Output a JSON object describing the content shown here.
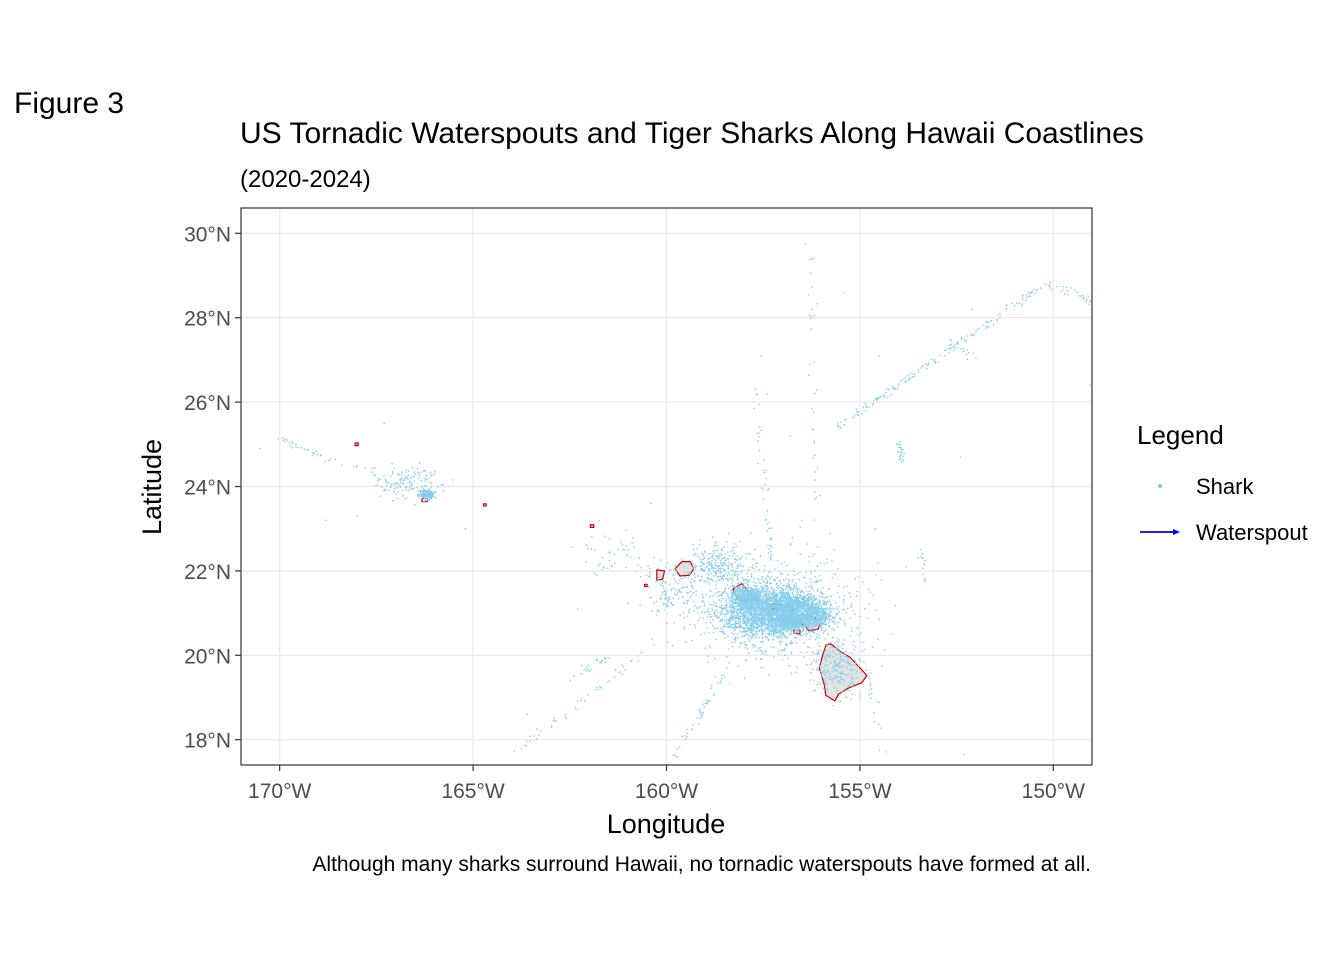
{
  "figure_label": "Figure 3",
  "chart_data": {
    "type": "map",
    "title": "US Tornadic Waterspouts and Tiger Sharks Along Hawaii Coastlines",
    "subtitle": "(2020-2024)",
    "xlabel": "Longitude",
    "ylabel": "Latitude",
    "caption": "Although many sharks surround Hawaii, no tornadic waterspouts have formed at all.",
    "xlim": [
      -171.0,
      -149.0
    ],
    "ylim": [
      17.4,
      30.6
    ],
    "x_ticks": [
      -170,
      -165,
      -160,
      -155,
      -150
    ],
    "x_tick_labels": [
      "170°W",
      "165°W",
      "160°W",
      "155°W",
      "150°W"
    ],
    "y_ticks": [
      18,
      20,
      22,
      24,
      26,
      28,
      30
    ],
    "y_tick_labels": [
      "18°N",
      "20°N",
      "22°N",
      "24°N",
      "26°N",
      "28°N",
      "30°N"
    ],
    "grid": true,
    "legend": {
      "title": "Legend",
      "placement": "right",
      "entries": [
        {
          "label": "Shark",
          "type": "point",
          "color": "#87CEEB"
        },
        {
          "label": "Waterspout",
          "type": "arrow",
          "color": "#0000FF"
        }
      ]
    },
    "waterspouts": [],
    "colors": {
      "shark": "#87CEEB",
      "waterspout": "#0000FF",
      "coastline": "#CC0000",
      "land": "#E3E3E3",
      "grid": "#EBEBEB"
    },
    "islands": [
      {
        "name": "Hawaii",
        "outline": [
          [
            -155.87,
            20.25
          ],
          [
            -155.75,
            20.27
          ],
          [
            -155.55,
            20.12
          ],
          [
            -155.25,
            19.95
          ],
          [
            -155.05,
            19.75
          ],
          [
            -154.82,
            19.52
          ],
          [
            -154.95,
            19.35
          ],
          [
            -155.3,
            19.22
          ],
          [
            -155.55,
            19.08
          ],
          [
            -155.65,
            18.92
          ],
          [
            -155.88,
            19.05
          ],
          [
            -155.92,
            19.3
          ],
          [
            -156.05,
            19.7
          ],
          [
            -155.95,
            20.05
          ]
        ]
      },
      {
        "name": "Maui",
        "outline": [
          [
            -156.68,
            20.92
          ],
          [
            -156.47,
            20.98
          ],
          [
            -156.28,
            20.95
          ],
          [
            -156.0,
            20.8
          ],
          [
            -156.08,
            20.62
          ],
          [
            -156.32,
            20.58
          ],
          [
            -156.45,
            20.73
          ],
          [
            -156.62,
            20.78
          ]
        ]
      },
      {
        "name": "Kahoolawe",
        "outline": [
          [
            -156.72,
            20.6
          ],
          [
            -156.55,
            20.6
          ],
          [
            -156.55,
            20.5
          ],
          [
            -156.7,
            20.52
          ]
        ]
      },
      {
        "name": "Lanai",
        "outline": [
          [
            -157.05,
            20.9
          ],
          [
            -156.82,
            20.9
          ],
          [
            -156.82,
            20.74
          ],
          [
            -157.05,
            20.75
          ]
        ]
      },
      {
        "name": "Molokai",
        "outline": [
          [
            -157.3,
            21.22
          ],
          [
            -156.95,
            21.2
          ],
          [
            -156.72,
            21.15
          ],
          [
            -156.75,
            21.06
          ],
          [
            -157.05,
            21.08
          ],
          [
            -157.3,
            21.1
          ]
        ]
      },
      {
        "name": "Oahu",
        "outline": [
          [
            -158.28,
            21.58
          ],
          [
            -158.05,
            21.7
          ],
          [
            -157.82,
            21.45
          ],
          [
            -157.65,
            21.3
          ],
          [
            -157.9,
            21.28
          ],
          [
            -158.12,
            21.3
          ],
          [
            -158.25,
            21.45
          ]
        ]
      },
      {
        "name": "Kauai",
        "outline": [
          [
            -159.78,
            22.05
          ],
          [
            -159.6,
            22.22
          ],
          [
            -159.38,
            22.22
          ],
          [
            -159.3,
            22.05
          ],
          [
            -159.4,
            21.9
          ],
          [
            -159.65,
            21.88
          ]
        ]
      },
      {
        "name": "Niihau",
        "outline": [
          [
            -160.25,
            22.02
          ],
          [
            -160.05,
            22.0
          ],
          [
            -160.1,
            21.8
          ],
          [
            -160.25,
            21.78
          ]
        ]
      },
      {
        "name": "Kaula",
        "outline": [
          [
            -160.57,
            21.68
          ],
          [
            -160.5,
            21.68
          ],
          [
            -160.5,
            21.63
          ],
          [
            -160.57,
            21.63
          ]
        ]
      },
      {
        "name": "Nihoa",
        "outline": [
          [
            -161.97,
            23.09
          ],
          [
            -161.88,
            23.09
          ],
          [
            -161.88,
            23.03
          ],
          [
            -161.97,
            23.03
          ]
        ]
      },
      {
        "name": "Necker",
        "outline": [
          [
            -164.73,
            23.59
          ],
          [
            -164.66,
            23.59
          ],
          [
            -164.66,
            23.54
          ],
          [
            -164.73,
            23.54
          ]
        ]
      },
      {
        "name": "French Frigate Shoals",
        "outline": [
          [
            -166.32,
            23.72
          ],
          [
            -166.18,
            23.72
          ],
          [
            -166.18,
            23.64
          ],
          [
            -166.32,
            23.64
          ]
        ]
      },
      {
        "name": "Gardner Pinnacles",
        "outline": [
          [
            -168.05,
            25.03
          ],
          [
            -167.97,
            25.03
          ],
          [
            -167.97,
            24.97
          ],
          [
            -168.05,
            24.97
          ]
        ]
      }
    ],
    "shark_clusters": [
      {
        "cx": -157.3,
        "cy": 21.0,
        "sx": 1.3,
        "sy": 0.55,
        "n": 2400
      },
      {
        "cx": -157.9,
        "cy": 21.4,
        "sx": 0.4,
        "sy": 0.25,
        "n": 500
      },
      {
        "cx": -156.2,
        "cy": 20.9,
        "sx": 0.45,
        "sy": 0.25,
        "n": 450
      },
      {
        "cx": -157.0,
        "cy": 21.1,
        "sx": 2.2,
        "sy": 1.3,
        "n": 700
      },
      {
        "cx": -158.7,
        "cy": 22.1,
        "sx": 0.8,
        "sy": 0.45,
        "n": 260
      },
      {
        "cx": -156.6,
        "cy": 21.2,
        "sx": 0.6,
        "sy": 0.25,
        "n": 450
      },
      {
        "cx": -156.8,
        "cy": 20.8,
        "sx": 0.3,
        "sy": 0.2,
        "n": 350
      },
      {
        "cx": -155.6,
        "cy": 19.7,
        "sx": 0.6,
        "sy": 0.6,
        "n": 220
      },
      {
        "cx": -166.2,
        "cy": 23.8,
        "sx": 0.18,
        "sy": 0.12,
        "n": 200
      },
      {
        "cx": -166.8,
        "cy": 24.1,
        "sx": 0.9,
        "sy": 0.4,
        "n": 120
      },
      {
        "cx": -159.8,
        "cy": 21.5,
        "sx": 0.9,
        "sy": 0.7,
        "n": 150
      },
      {
        "cx": -161.5,
        "cy": 22.4,
        "sx": 1.0,
        "sy": 0.5,
        "n": 40
      }
    ],
    "shark_tracks": [
      {
        "from": [
          -155.6,
          25.4
        ],
        "to": [
          -150.2,
          28.8
        ],
        "n": 160
      },
      {
        "from": [
          -150.2,
          28.8
        ],
        "to": [
          -149.0,
          28.4
        ],
        "n": 30
      },
      {
        "from": [
          -158.5,
          19.6
        ],
        "to": [
          -159.8,
          17.6
        ],
        "n": 45
      },
      {
        "from": [
          -160.0,
          20.5
        ],
        "to": [
          -163.9,
          17.7
        ],
        "n": 50
      },
      {
        "from": [
          -161.5,
          20.0
        ],
        "to": [
          -162.5,
          19.4
        ],
        "n": 25
      },
      {
        "from": [
          -157.2,
          21.4
        ],
        "to": [
          -157.7,
          26.4
        ],
        "n": 45
      },
      {
        "from": [
          -156.1,
          21.6
        ],
        "to": [
          -156.3,
          29.7
        ],
        "n": 40
      },
      {
        "from": [
          -154.0,
          25.1
        ],
        "to": [
          -153.9,
          24.6
        ],
        "n": 25
      },
      {
        "from": [
          -170.0,
          25.1
        ],
        "to": [
          -166.5,
          23.9
        ],
        "n": 55
      },
      {
        "from": [
          -155.2,
          21.5
        ],
        "to": [
          -154.4,
          17.7
        ],
        "n": 25
      },
      {
        "from": [
          -153.4,
          22.5
        ],
        "to": [
          -153.3,
          21.7
        ],
        "n": 15
      },
      {
        "from": [
          -152.8,
          27.5
        ],
        "to": [
          -151.9,
          27.0
        ],
        "n": 15
      }
    ],
    "shark_singletons": [
      [
        -156.4,
        29.75
      ],
      [
        -155.4,
        28.6
      ],
      [
        -157.55,
        27.1
      ],
      [
        -157.4,
        26.2
      ],
      [
        -154.5,
        27.1
      ],
      [
        -153.6,
        26.6
      ],
      [
        -152.4,
        24.7
      ],
      [
        -152.3,
        17.65
      ],
      [
        -154.6,
        23.0
      ],
      [
        -153.8,
        22.1
      ],
      [
        -167.3,
        25.5
      ],
      [
        -168.8,
        23.2
      ],
      [
        -168.0,
        23.3
      ],
      [
        -169.8,
        25.1
      ],
      [
        -170.5,
        24.9
      ],
      [
        -165.2,
        23.0
      ],
      [
        -160.4,
        23.6
      ],
      [
        -156.8,
        25.2
      ],
      [
        -156.5,
        23.2
      ],
      [
        -155.0,
        19.0
      ],
      [
        -160.7,
        22.3
      ],
      [
        -161.8,
        21.9
      ],
      [
        -162.3,
        21.1
      ],
      [
        -163.6,
        18.6
      ],
      [
        -149.05,
        26.4
      ],
      [
        -149.05,
        28.4
      ],
      [
        -152.1,
        28.2
      ],
      [
        -158.8,
        22.8
      ]
    ]
  }
}
